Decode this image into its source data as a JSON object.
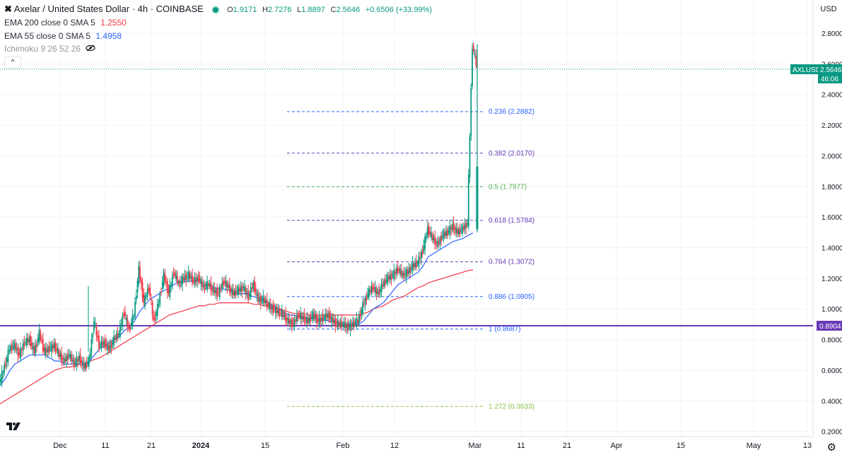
{
  "header": {
    "symbol_icon": "axelar-x-icon",
    "title": "Axelar / United States Dollar · 4h · COINBASE",
    "open_label": "O",
    "open": "1.9171",
    "high_label": "H",
    "high": "2.7276",
    "low_label": "L",
    "low": "1.8897",
    "close_label": "C",
    "close": "2.5646",
    "change": "+0.6506 (+33.99%)"
  },
  "indicators": {
    "ema200_label": "EMA 200 close 0 SMA 5",
    "ema200_value": "1.2550",
    "ema55_label": "EMA 55 close 0 SMA 5",
    "ema55_value": "1.4958",
    "ichimoku_label": "Ichimoku 9 26 52 26"
  },
  "toolbar": {
    "collapse_glyph": "^",
    "currency": "USD"
  },
  "price_scale": {
    "ticks": [
      "2.8000",
      "2.6000",
      "2.4000",
      "2.2000",
      "2.0000",
      "1.8000",
      "1.6000",
      "1.4000",
      "1.2000",
      "1.0000",
      "0.8000",
      "0.6000",
      "0.4000",
      "0.2000"
    ],
    "last_price_label": "AXLUSD",
    "last_price": "2.5646",
    "countdown": "46:06",
    "hline_price": "0.8904"
  },
  "time_axis": [
    "Dec",
    "11",
    "21",
    "2024",
    "15",
    "Feb",
    "12",
    "Mar",
    "11",
    "21",
    "Apr",
    "15",
    "May",
    "13"
  ],
  "colors": {
    "up": "#089981",
    "down": "#f23645",
    "ema200": "#f23645",
    "ema55": "#2962ff",
    "hline": "#673ab7",
    "fib_0236": "#2962ff",
    "fib_0382": "#673ab7",
    "fib_05": "#4caf50",
    "fib_0618": "#673ab7",
    "fib_0764": "#673ab7",
    "fib_0886": "#2962ff",
    "fib_1": "#2962ff",
    "fib_1272": "#8bc34a"
  },
  "fib_levels": [
    {
      "label": "0.236 (2.2882)",
      "price": 2.2882,
      "color": "#2962ff"
    },
    {
      "label": "0.382 (2.0170)",
      "price": 2.017,
      "color": "#673ab7"
    },
    {
      "label": "0.5 (1.7977)",
      "price": 1.7977,
      "color": "#4caf50"
    },
    {
      "label": "0.618 (1.5784)",
      "price": 1.5784,
      "color": "#673ab7"
    },
    {
      "label": "0.764 (1.3072)",
      "price": 1.3072,
      "color": "#673ab7"
    },
    {
      "label": "0.886 (1.0805)",
      "price": 1.0805,
      "color": "#2962ff"
    },
    {
      "label": "1 (0.8687)",
      "price": 0.8687,
      "color": "#2962ff"
    },
    {
      "label": "1.272 (0.3633)",
      "price": 0.3633,
      "color": "#8bc34a"
    }
  ],
  "price_path": [
    0.52,
    0.62,
    0.74,
    0.76,
    0.7,
    0.78,
    0.8,
    0.72,
    0.84,
    0.72,
    0.74,
    0.76,
    0.7,
    0.66,
    0.7,
    0.64,
    0.68,
    0.62,
    0.66,
    0.92,
    0.76,
    0.78,
    0.74,
    0.8,
    0.84,
    0.98,
    0.86,
    0.96,
    1.26,
    1.04,
    1.14,
    0.92,
    1.04,
    1.22,
    1.1,
    1.24,
    1.16,
    1.2,
    1.22,
    1.18,
    1.2,
    1.14,
    1.16,
    1.12,
    1.1,
    1.18,
    1.14,
    1.1,
    1.12,
    1.14,
    1.08,
    1.16,
    1.06,
    1.06,
    1.02,
    1.0,
    0.98,
    0.96,
    0.92,
    0.9,
    0.96,
    0.94,
    0.92,
    0.96,
    0.92,
    0.94,
    0.96,
    0.92,
    0.9,
    0.9,
    0.88,
    0.9,
    0.92,
    1.02,
    1.1,
    1.14,
    1.1,
    1.16,
    1.2,
    1.22,
    1.26,
    1.22,
    1.24,
    1.28,
    1.3,
    1.38,
    1.52,
    1.46,
    1.42,
    1.48,
    1.5,
    1.54,
    1.5,
    1.52,
    1.56,
    2.72,
    2.5646
  ],
  "ema55_path": [
    0.5,
    0.54,
    0.6,
    0.64,
    0.66,
    0.68,
    0.7,
    0.7,
    0.7,
    0.7,
    0.68,
    0.66,
    0.66,
    0.64,
    0.64,
    0.64,
    0.64,
    0.64,
    0.66,
    0.7,
    0.74,
    0.76,
    0.78,
    0.8,
    0.82,
    0.86,
    0.88,
    0.92,
    0.98,
    1.02,
    1.06,
    1.08,
    1.1,
    1.12,
    1.14,
    1.16,
    1.18,
    1.18,
    1.18,
    1.18,
    1.18,
    1.16,
    1.16,
    1.14,
    1.13,
    1.13,
    1.12,
    1.11,
    1.1,
    1.1,
    1.09,
    1.08,
    1.07,
    1.06,
    1.04,
    1.02,
    1.0,
    0.98,
    0.96,
    0.96,
    0.95,
    0.94,
    0.94,
    0.94,
    0.93,
    0.93,
    0.92,
    0.92,
    0.91,
    0.9,
    0.9,
    0.9,
    0.9,
    0.92,
    0.96,
    1.0,
    1.02,
    1.04,
    1.08,
    1.12,
    1.16,
    1.18,
    1.2,
    1.22,
    1.24,
    1.28,
    1.34,
    1.36,
    1.38,
    1.4,
    1.42,
    1.44,
    1.45,
    1.46,
    1.48,
    1.4958
  ],
  "ema200_path": [
    0.38,
    0.4,
    0.42,
    0.44,
    0.46,
    0.48,
    0.5,
    0.52,
    0.54,
    0.56,
    0.58,
    0.6,
    0.61,
    0.62,
    0.62,
    0.63,
    0.64,
    0.64,
    0.66,
    0.67,
    0.68,
    0.7,
    0.72,
    0.74,
    0.76,
    0.78,
    0.8,
    0.82,
    0.84,
    0.86,
    0.88,
    0.9,
    0.92,
    0.94,
    0.96,
    0.97,
    0.98,
    0.99,
    1.0,
    1.01,
    1.02,
    1.02,
    1.03,
    1.03,
    1.04,
    1.04,
    1.04,
    1.04,
    1.04,
    1.04,
    1.04,
    1.03,
    1.03,
    1.02,
    1.02,
    1.01,
    1.0,
    0.99,
    0.98,
    0.97,
    0.97,
    0.97,
    0.96,
    0.96,
    0.96,
    0.96,
    0.96,
    0.96,
    0.96,
    0.96,
    0.96,
    0.96,
    0.96,
    0.97,
    0.98,
    1.0,
    1.01,
    1.02,
    1.04,
    1.06,
    1.07,
    1.08,
    1.1,
    1.12,
    1.14,
    1.15,
    1.17,
    1.18,
    1.19,
    1.2,
    1.21,
    1.22,
    1.23,
    1.24,
    1.25,
    1.255
  ]
}
